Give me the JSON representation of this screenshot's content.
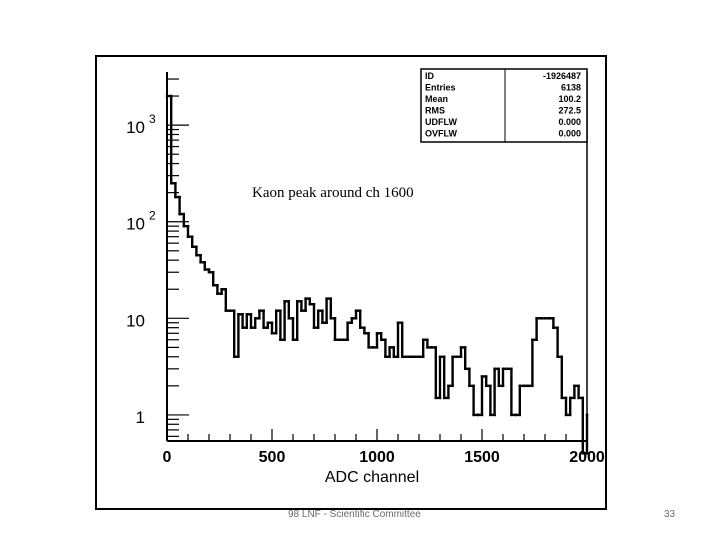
{
  "chart_data": {
    "type": "line",
    "xlabel": "ADC channel",
    "ylabel": "",
    "x_ticks": [
      "0",
      "500",
      "1000",
      "1500",
      "2000"
    ],
    "y_ticks": [
      {
        "base": "10",
        "exp": "3",
        "value": 1000
      },
      {
        "base": "10",
        "exp": "2",
        "value": 100
      },
      {
        "base": "10",
        "exp": "",
        "value": 10
      },
      {
        "base": "1",
        "exp": "",
        "value": 1
      }
    ],
    "xlim": [
      0,
      2000
    ],
    "ylog": true,
    "grid": false,
    "annotation": "Kaon peak around ch 1600",
    "stats_box": {
      "position": "top-right",
      "rows": [
        {
          "label": "ID",
          "value": "-1926487"
        },
        {
          "label": "Entries",
          "value": "6138"
        },
        {
          "label": "Mean",
          "value": "100.2"
        },
        {
          "label": "RMS",
          "value": "272.5"
        },
        {
          "label": "UDFLW",
          "value": "0.000"
        },
        {
          "label": "OVFLW",
          "value": "0.000"
        }
      ]
    },
    "series": [
      {
        "x": [
          0,
          20,
          40,
          60,
          80,
          100,
          120,
          140,
          160,
          180,
          200,
          220,
          240,
          260,
          280,
          300,
          320,
          340,
          360,
          380,
          400,
          420,
          440,
          460,
          480,
          500,
          520,
          540,
          560,
          580,
          600,
          620,
          640,
          660,
          680,
          700,
          720,
          740,
          760,
          780,
          800,
          820,
          840,
          860,
          880,
          900,
          920,
          940,
          960,
          980,
          1000,
          1020,
          1040,
          1060,
          1080,
          1100,
          1120,
          1140,
          1160,
          1180,
          1200,
          1220,
          1240,
          1260,
          1280,
          1300,
          1320,
          1340,
          1360,
          1380,
          1400,
          1420,
          1440,
          1460,
          1480,
          1500,
          1520,
          1540,
          1560,
          1580,
          1600,
          1620,
          1640,
          1660,
          1680,
          1700,
          1720,
          1740,
          1760,
          1780,
          1800,
          1820,
          1840,
          1860,
          1880,
          1900,
          1920,
          1940,
          1960,
          1980,
          2000
        ],
        "y": [
          2000,
          250,
          180,
          120,
          90,
          70,
          55,
          45,
          38,
          32,
          30,
          22,
          18,
          20,
          12,
          12,
          4,
          11,
          8,
          11,
          8,
          10,
          12,
          8,
          9,
          7,
          12,
          6,
          15,
          10,
          6,
          15,
          12,
          16,
          14,
          8,
          12,
          9,
          16,
          10,
          6,
          6,
          6,
          9,
          10,
          12,
          8,
          7,
          5,
          5,
          7,
          6,
          4,
          5,
          4,
          9,
          4,
          4,
          4,
          4,
          4,
          6,
          5,
          5,
          1.5,
          4,
          1.5,
          2,
          4,
          4,
          5,
          3,
          2,
          1,
          1,
          2.5,
          2,
          1,
          3,
          2,
          3,
          3,
          1,
          1,
          2,
          2,
          2,
          6,
          10,
          10,
          10,
          10,
          8,
          4,
          1.5,
          1,
          1.5,
          2,
          1.5,
          0.4,
          1
        ]
      }
    ]
  },
  "footer": {
    "left_text": "98 LNF - Scientific Committee",
    "page_number": "33"
  }
}
